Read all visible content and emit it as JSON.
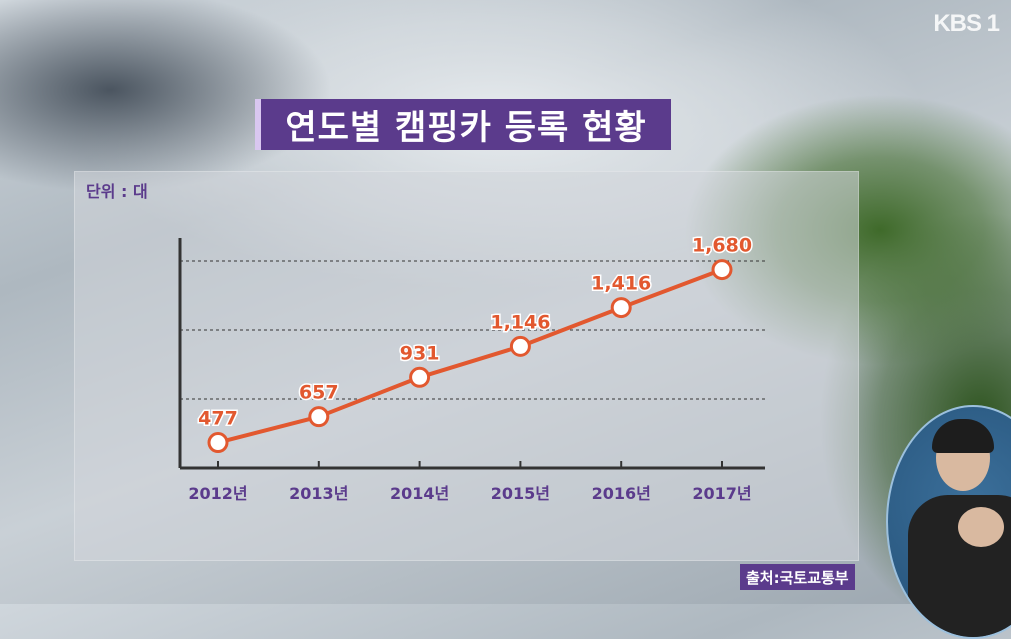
{
  "broadcaster_logo": "KBS 1",
  "title": "연도별 캠핑카 등록 현황",
  "unit_label": "단위 : 대",
  "source_label": "출처:국토교통부",
  "colors": {
    "title_bg": "#5b3b8c",
    "line": "#e2582f",
    "label": "#e2582f",
    "axis_label": "#5b3b8c"
  },
  "chart_data": {
    "type": "line",
    "title": "연도별 캠핑카 등록 현황",
    "ylabel": "단위 : 대",
    "categories": [
      "2012년",
      "2013년",
      "2014년",
      "2015년",
      "2016년",
      "2017년"
    ],
    "values": [
      477,
      657,
      931,
      1146,
      1416,
      1680
    ],
    "value_labels": [
      "477",
      "657",
      "931",
      "1,146",
      "1,416",
      "1,680"
    ],
    "ylim": [
      300,
      1900
    ],
    "grid": true
  }
}
